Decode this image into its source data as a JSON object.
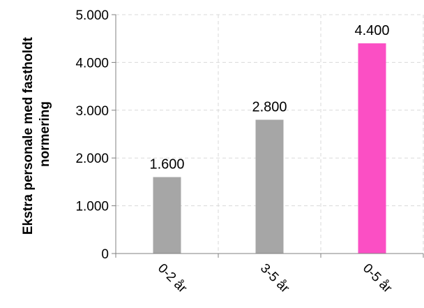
{
  "chart_data": {
    "type": "bar",
    "categories": [
      "0-2 år",
      "3-5 år",
      "0-5 år"
    ],
    "values": [
      1600,
      2800,
      4400
    ],
    "data_labels": [
      "1.600",
      "2.800",
      "4.400"
    ],
    "bar_colors": [
      "#a6a6a6",
      "#a6a6a6",
      "#fb4fc4"
    ],
    "ylabel_lines": [
      "Ekstra personale med fastholdt",
      "normering"
    ],
    "ylim": [
      0,
      5000
    ],
    "yticks": [
      0,
      1000,
      2000,
      3000,
      4000,
      5000
    ],
    "ytick_labels": [
      "0",
      "1.000",
      "2.000",
      "3.000",
      "4.000",
      "5.000"
    ],
    "grid": true,
    "grid_color": "#d9d9d9"
  }
}
